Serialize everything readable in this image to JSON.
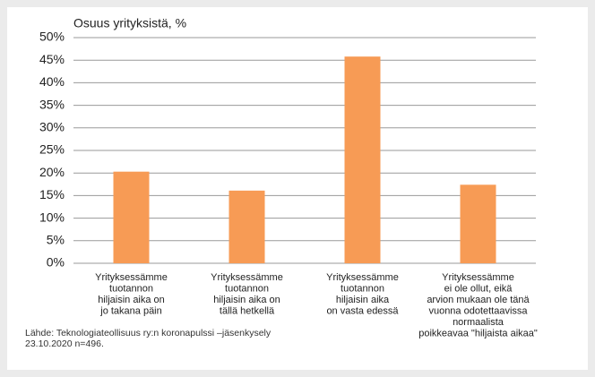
{
  "chart_data": {
    "type": "bar",
    "ylabel": "Osuus yrityksistä, %",
    "categories": [
      [
        "Yrityksessämme",
        "tuotannon",
        "hiljaisin aika on",
        "jo takana päin"
      ],
      [
        "Yrityksessämme",
        "tuotannon",
        "hiljaisin aika on",
        "tällä hetkellä"
      ],
      [
        "Yrityksessämme",
        "tuotannon",
        "hiljaisin aika",
        "on vasta edessä"
      ],
      [
        "Yrityksessämme",
        "ei ole ollut, eikä",
        "arvion mukaan ole tänä",
        "vuonna odotettaavissa",
        "normaalista",
        "poikkeavaa \"hiljaista aikaa\""
      ]
    ],
    "values": [
      20.3,
      16.1,
      45.8,
      17.4
    ],
    "color": "#f79b55",
    "ylim": [
      0,
      50
    ],
    "yticks": [
      {
        "value": 0,
        "label": "0%"
      },
      {
        "value": 5,
        "label": "5%"
      },
      {
        "value": 10,
        "label": "10%"
      },
      {
        "value": 15,
        "label": "15%"
      },
      {
        "value": 20,
        "label": "20%"
      },
      {
        "value": 25,
        "label": "25%"
      },
      {
        "value": 30,
        "label": "30%"
      },
      {
        "value": 35,
        "label": "35%"
      },
      {
        "value": 40,
        "label": "40%"
      },
      {
        "value": 45,
        "label": "45%"
      },
      {
        "value": 50,
        "label": "50%"
      }
    ],
    "grid": true,
    "note": [
      "Lähde: Teknologiateollisuus ry:n koronapulssi –jäsenkysely",
      "23.10.2020 n=496."
    ]
  }
}
